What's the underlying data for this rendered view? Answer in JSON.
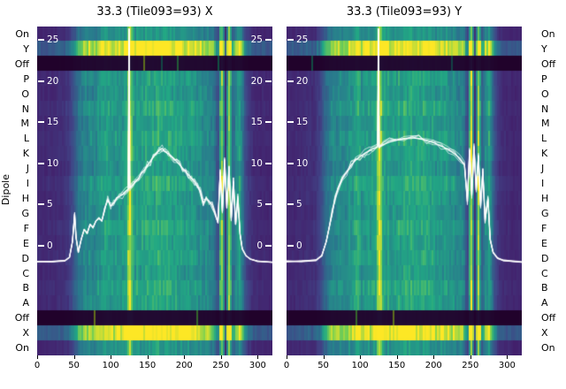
{
  "chart_data": {
    "type": "heatmap",
    "ylabel": "Dipole",
    "x_ticks": [
      0,
      50,
      100,
      150,
      200,
      250,
      300
    ],
    "x_range": [
      0,
      320
    ],
    "line_ticks": [
      25,
      20,
      15,
      10,
      5,
      0
    ],
    "line_axis": {
      "min": -13.3,
      "max": 26.6
    },
    "rows": [
      {
        "label": "On",
        "type": "on",
        "gain": 1.0
      },
      {
        "label": "Y",
        "type": "boost",
        "gain": 1.0
      },
      {
        "label": "Off",
        "type": "off",
        "gain": 1.0
      },
      {
        "label": "P",
        "type": "letter",
        "gain": 1.0
      },
      {
        "label": "O",
        "type": "letter",
        "gain": 0.95
      },
      {
        "label": "N",
        "type": "letter",
        "gain": 1.05
      },
      {
        "label": "M",
        "type": "letter",
        "gain": 0.97
      },
      {
        "label": "L",
        "type": "letter",
        "gain": 1.03
      },
      {
        "label": "K",
        "type": "letter",
        "gain": 1.0
      },
      {
        "label": "J",
        "type": "letter",
        "gain": 0.94
      },
      {
        "label": "I",
        "type": "letter",
        "gain": 1.06
      },
      {
        "label": "H",
        "type": "letter",
        "gain": 1.0
      },
      {
        "label": "G",
        "type": "letter",
        "gain": 0.96
      },
      {
        "label": "F",
        "type": "letter",
        "gain": 1.04
      },
      {
        "label": "E",
        "type": "letter",
        "gain": 0.98
      },
      {
        "label": "D",
        "type": "letter",
        "gain": 1.02
      },
      {
        "label": "C",
        "type": "letter",
        "gain": 0.95
      },
      {
        "label": "B",
        "type": "letter",
        "gain": 1.05
      },
      {
        "label": "A",
        "type": "letter",
        "gain": 1.0
      },
      {
        "label": "Off",
        "type": "off",
        "gain": 1.0
      },
      {
        "label": "X",
        "type": "boost",
        "gain": 1.0
      },
      {
        "label": "On",
        "type": "on",
        "gain": 1.0
      }
    ],
    "spectrum_x_step": 5,
    "spectrum": [
      0.12,
      0.12,
      0.12,
      0.13,
      0.13,
      0.13,
      0.14,
      0.14,
      0.16,
      0.2,
      0.3,
      0.38,
      0.44,
      0.46,
      0.47,
      0.48,
      0.5,
      0.52,
      0.54,
      0.62,
      0.52,
      0.52,
      0.53,
      0.55,
      0.57,
      0.95,
      0.57,
      0.55,
      0.56,
      0.57,
      0.58,
      0.59,
      0.6,
      0.61,
      0.61,
      0.6,
      0.59,
      0.58,
      0.57,
      0.56,
      0.55,
      0.54,
      0.53,
      0.52,
      0.51,
      0.5,
      0.48,
      0.46,
      0.43,
      0.18,
      0.92,
      0.14,
      0.85,
      0.3,
      0.48,
      0.58,
      0.32,
      0.18,
      0.14,
      0.13,
      0.12,
      0.12,
      0.12,
      0.12,
      0.12
    ],
    "colormap": [
      [
        0,
        "#440154"
      ],
      [
        0.2,
        "#414487"
      ],
      [
        0.4,
        "#2a788e"
      ],
      [
        0.6,
        "#22a884"
      ],
      [
        0.8,
        "#7ad151"
      ],
      [
        1,
        "#fde725"
      ]
    ],
    "panels": [
      {
        "title": "33.3 (Tile093=93) X",
        "line": [
          [
            0,
            -1.9
          ],
          [
            20,
            -1.9
          ],
          [
            38,
            -1.8
          ],
          [
            44,
            -1.4
          ],
          [
            48,
            0.5
          ],
          [
            51,
            3.8
          ],
          [
            53,
            1.0
          ],
          [
            56,
            -0.8
          ],
          [
            60,
            0.8
          ],
          [
            64,
            2.0
          ],
          [
            68,
            1.5
          ],
          [
            72,
            2.6
          ],
          [
            76,
            2.2
          ],
          [
            80,
            3.0
          ],
          [
            84,
            3.4
          ],
          [
            88,
            3.0
          ],
          [
            92,
            4.6
          ],
          [
            96,
            5.6
          ],
          [
            100,
            4.8
          ],
          [
            104,
            5.2
          ],
          [
            108,
            5.8
          ],
          [
            112,
            6.0
          ],
          [
            116,
            6.2
          ],
          [
            120,
            6.6
          ],
          [
            124,
            6.9
          ],
          [
            125,
            26.3
          ],
          [
            126,
            7.0
          ],
          [
            130,
            7.4
          ],
          [
            134,
            7.8
          ],
          [
            138,
            8.2
          ],
          [
            142,
            8.8
          ],
          [
            146,
            9.2
          ],
          [
            150,
            9.8
          ],
          [
            154,
            10.2
          ],
          [
            158,
            10.8
          ],
          [
            162,
            11.2
          ],
          [
            166,
            11.6
          ],
          [
            170,
            11.8
          ],
          [
            174,
            11.4
          ],
          [
            178,
            11.2
          ],
          [
            182,
            10.9
          ],
          [
            186,
            10.6
          ],
          [
            190,
            10.2
          ],
          [
            194,
            9.8
          ],
          [
            198,
            9.4
          ],
          [
            202,
            9.0
          ],
          [
            206,
            8.6
          ],
          [
            210,
            8.2
          ],
          [
            214,
            7.8
          ],
          [
            218,
            7.2
          ],
          [
            222,
            6.6
          ],
          [
            226,
            5.2
          ],
          [
            230,
            5.8
          ],
          [
            234,
            5.4
          ],
          [
            238,
            5.0
          ],
          [
            242,
            4.0
          ],
          [
            246,
            2.8
          ],
          [
            249,
            8.8
          ],
          [
            252,
            4.2
          ],
          [
            255,
            10.4
          ],
          [
            258,
            4.6
          ],
          [
            261,
            9.6
          ],
          [
            264,
            3.4
          ],
          [
            267,
            7.8
          ],
          [
            270,
            2.6
          ],
          [
            273,
            6.0
          ],
          [
            276,
            1.4
          ],
          [
            279,
            -0.4
          ],
          [
            284,
            -1.2
          ],
          [
            290,
            -1.6
          ],
          [
            300,
            -1.9
          ],
          [
            320,
            -2.0
          ]
        ]
      },
      {
        "title": "33.3 (Tile093=93) Y",
        "line": [
          [
            0,
            -1.9
          ],
          [
            20,
            -1.9
          ],
          [
            40,
            -1.8
          ],
          [
            48,
            -1.2
          ],
          [
            54,
            0.5
          ],
          [
            58,
            2.2
          ],
          [
            62,
            4.0
          ],
          [
            66,
            5.8
          ],
          [
            70,
            7.0
          ],
          [
            76,
            8.2
          ],
          [
            82,
            9.0
          ],
          [
            88,
            9.8
          ],
          [
            94,
            10.4
          ],
          [
            100,
            10.8
          ],
          [
            106,
            11.2
          ],
          [
            112,
            11.5
          ],
          [
            118,
            11.8
          ],
          [
            124,
            12.0
          ],
          [
            125,
            26.3
          ],
          [
            126,
            12.0
          ],
          [
            132,
            12.3
          ],
          [
            140,
            12.6
          ],
          [
            150,
            12.8
          ],
          [
            160,
            13.0
          ],
          [
            170,
            13.1
          ],
          [
            180,
            13.0
          ],
          [
            190,
            12.8
          ],
          [
            200,
            12.5
          ],
          [
            210,
            12.1
          ],
          [
            220,
            11.7
          ],
          [
            228,
            11.2
          ],
          [
            236,
            10.6
          ],
          [
            242,
            9.8
          ],
          [
            246,
            5.4
          ],
          [
            249,
            11.6
          ],
          [
            252,
            6.2
          ],
          [
            255,
            12.0
          ],
          [
            258,
            6.8
          ],
          [
            261,
            10.8
          ],
          [
            264,
            4.8
          ],
          [
            267,
            9.0
          ],
          [
            270,
            3.2
          ],
          [
            274,
            5.6
          ],
          [
            277,
            0.8
          ],
          [
            281,
            -0.8
          ],
          [
            287,
            -1.5
          ],
          [
            295,
            -1.8
          ],
          [
            320,
            -2.0
          ]
        ]
      }
    ]
  }
}
